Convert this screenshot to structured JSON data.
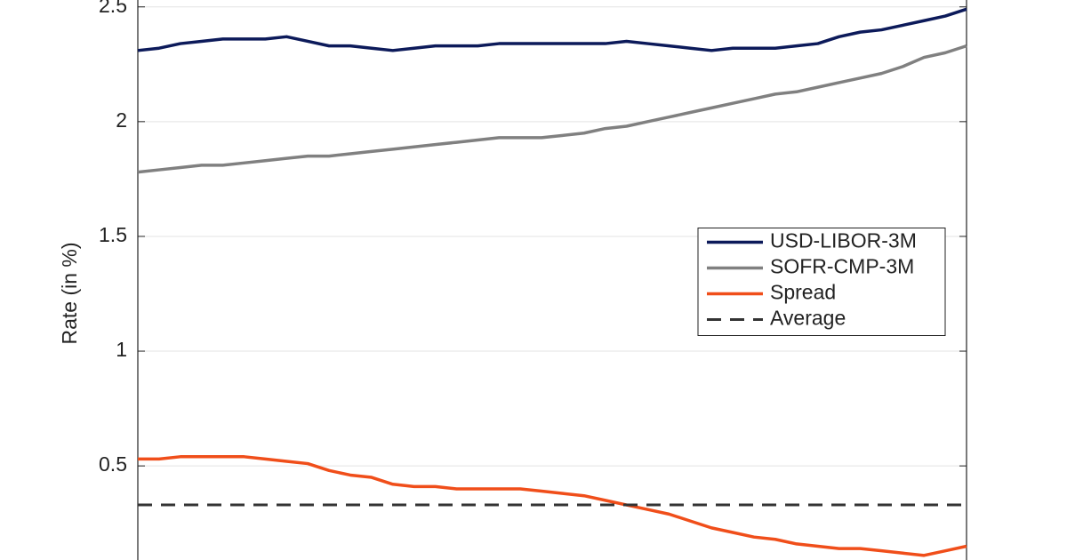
{
  "chart_data": {
    "type": "line",
    "ylabel": "Rate (in %)",
    "categories": [
      null,
      null,
      null,
      null,
      null,
      null,
      null,
      null,
      null,
      null,
      null,
      null,
      null,
      null,
      null,
      null,
      null,
      null,
      null,
      null,
      null,
      null,
      null,
      null,
      null,
      null,
      null,
      null,
      null,
      null,
      null,
      null,
      null,
      null,
      null,
      null,
      null,
      null,
      null,
      null
    ],
    "series": [
      {
        "name": "USD-LIBOR-3M",
        "color": "#0c1a5a",
        "values": [
          2.31,
          2.32,
          2.34,
          2.35,
          2.36,
          2.36,
          2.36,
          2.37,
          2.35,
          2.33,
          2.33,
          2.32,
          2.31,
          2.32,
          2.33,
          2.33,
          2.33,
          2.34,
          2.34,
          2.34,
          2.34,
          2.34,
          2.34,
          2.35,
          2.34,
          2.33,
          2.32,
          2.31,
          2.32,
          2.32,
          2.32,
          2.33,
          2.34,
          2.37,
          2.39,
          2.4,
          2.42,
          2.44,
          2.46,
          2.49
        ]
      },
      {
        "name": "SOFR-CMP-3M",
        "color": "#808080",
        "values": [
          1.78,
          1.79,
          1.8,
          1.81,
          1.81,
          1.82,
          1.83,
          1.84,
          1.85,
          1.85,
          1.86,
          1.87,
          1.88,
          1.89,
          1.9,
          1.91,
          1.92,
          1.93,
          1.93,
          1.93,
          1.94,
          1.95,
          1.97,
          1.98,
          2.0,
          2.02,
          2.04,
          2.06,
          2.08,
          2.1,
          2.12,
          2.13,
          2.15,
          2.17,
          2.19,
          2.21,
          2.24,
          2.28,
          2.3,
          2.33
        ]
      },
      {
        "name": "Spread",
        "color": "#f04e1a",
        "values": [
          0.53,
          0.53,
          0.54,
          0.54,
          0.54,
          0.54,
          0.53,
          0.52,
          0.51,
          0.48,
          0.46,
          0.45,
          0.42,
          0.41,
          0.41,
          0.4,
          0.4,
          0.4,
          0.4,
          0.39,
          0.38,
          0.37,
          0.35,
          0.33,
          0.31,
          0.29,
          0.26,
          0.23,
          0.21,
          0.19,
          0.18,
          0.16,
          0.15,
          0.14,
          0.14,
          0.13,
          0.12,
          0.11,
          0.13,
          0.15
        ]
      }
    ],
    "average": {
      "name": "Average",
      "value": 0.33,
      "color": "#333333",
      "dashed": true
    },
    "ylim": [
      0.09,
      2.53
    ],
    "yticks": [
      0.5,
      1,
      1.5,
      2,
      2.5
    ],
    "grid": true,
    "legend": "east"
  }
}
